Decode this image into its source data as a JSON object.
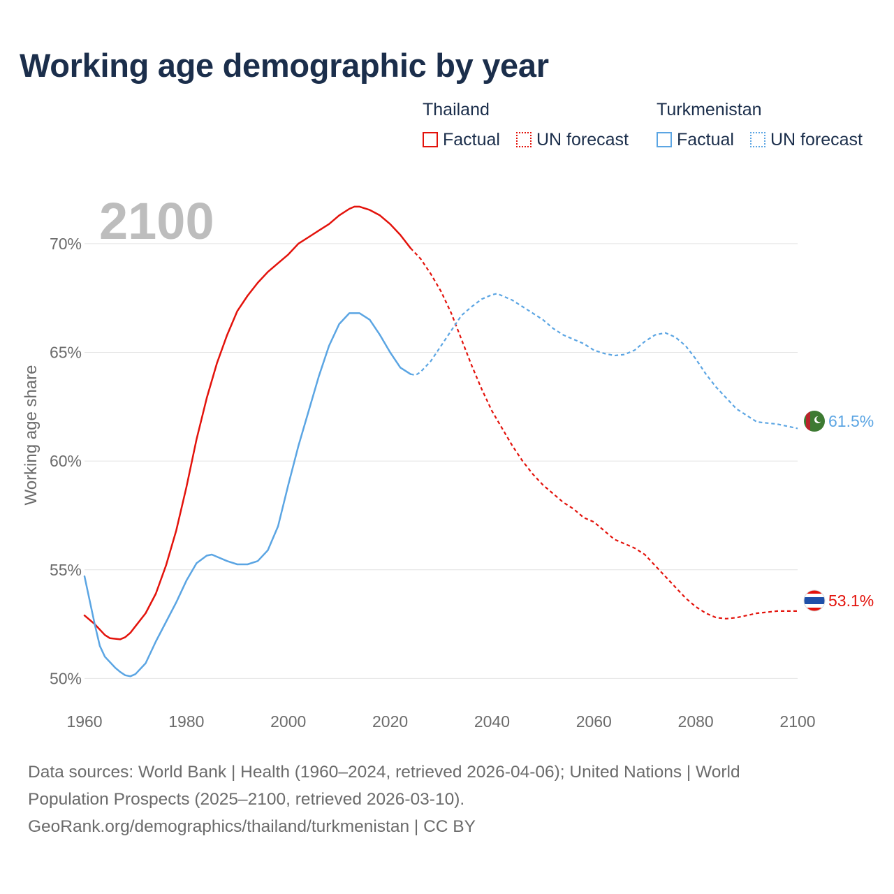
{
  "title": "Working age demographic by year",
  "legend": {
    "groups": [
      {
        "name": "Thailand",
        "color": "#e3120b",
        "items": [
          {
            "label": "Factual",
            "style": "solid"
          },
          {
            "label": "UN forecast",
            "style": "dotted"
          }
        ]
      },
      {
        "name": "Turkmenistan",
        "color": "#5ba5e3",
        "items": [
          {
            "label": "Factual",
            "style": "solid"
          },
          {
            "label": "UN forecast",
            "style": "dotted"
          }
        ]
      }
    ]
  },
  "year_label": "2100",
  "footer": {
    "line1": "Data sources: World Bank | Health (1960–2024, retrieved 2026-04-06); United Nations | World",
    "line2": "Population Prospects (2025–2100, retrieved 2026-03-10).",
    "line3": "GeoRank.org/demographics/thailand/turkmenistan | CC BY"
  },
  "chart_data": {
    "type": "line",
    "title": "Working age demographic by year",
    "xlabel": "",
    "ylabel": "Working age share",
    "xlim": [
      1960,
      2100
    ],
    "ylim": [
      49.5,
      72.5
    ],
    "x_ticks": [
      1960,
      1980,
      2000,
      2020,
      2040,
      2060,
      2080,
      2100
    ],
    "x_tick_labels": [
      "1960",
      "1980",
      "2000",
      "2020",
      "2040",
      "2060",
      "2080",
      "2100"
    ],
    "y_ticks": [
      50,
      55,
      60,
      65,
      70
    ],
    "y_tick_labels": [
      "50%",
      "55%",
      "60%",
      "65%",
      "70%"
    ],
    "grid": true,
    "factual_end_year": 2024,
    "series": [
      {
        "name": "Thailand",
        "color": "#e3120b",
        "end_label": "53.1%",
        "points": [
          [
            1960,
            52.9
          ],
          [
            1962,
            52.5
          ],
          [
            1964,
            52.0
          ],
          [
            1965,
            51.85
          ],
          [
            1967,
            51.8
          ],
          [
            1968,
            51.9
          ],
          [
            1969,
            52.1
          ],
          [
            1970,
            52.4
          ],
          [
            1972,
            53.0
          ],
          [
            1974,
            53.9
          ],
          [
            1976,
            55.2
          ],
          [
            1978,
            56.8
          ],
          [
            1980,
            58.8
          ],
          [
            1982,
            61.0
          ],
          [
            1984,
            62.9
          ],
          [
            1986,
            64.5
          ],
          [
            1988,
            65.8
          ],
          [
            1990,
            66.9
          ],
          [
            1992,
            67.6
          ],
          [
            1994,
            68.2
          ],
          [
            1996,
            68.7
          ],
          [
            1998,
            69.1
          ],
          [
            2000,
            69.5
          ],
          [
            2002,
            70.0
          ],
          [
            2004,
            70.3
          ],
          [
            2006,
            70.6
          ],
          [
            2008,
            70.9
          ],
          [
            2010,
            71.3
          ],
          [
            2012,
            71.6
          ],
          [
            2013,
            71.7
          ],
          [
            2014,
            71.7
          ],
          [
            2016,
            71.55
          ],
          [
            2018,
            71.3
          ],
          [
            2020,
            70.9
          ],
          [
            2022,
            70.4
          ],
          [
            2024,
            69.8
          ],
          [
            2026,
            69.3
          ],
          [
            2028,
            68.6
          ],
          [
            2030,
            67.8
          ],
          [
            2032,
            66.8
          ],
          [
            2034,
            65.6
          ],
          [
            2036,
            64.4
          ],
          [
            2038,
            63.3
          ],
          [
            2040,
            62.3
          ],
          [
            2042,
            61.5
          ],
          [
            2044,
            60.7
          ],
          [
            2046,
            60.0
          ],
          [
            2048,
            59.4
          ],
          [
            2050,
            58.9
          ],
          [
            2052,
            58.5
          ],
          [
            2054,
            58.1
          ],
          [
            2056,
            57.8
          ],
          [
            2058,
            57.4
          ],
          [
            2060,
            57.2
          ],
          [
            2062,
            56.8
          ],
          [
            2064,
            56.4
          ],
          [
            2066,
            56.2
          ],
          [
            2068,
            56.0
          ],
          [
            2070,
            55.7
          ],
          [
            2072,
            55.2
          ],
          [
            2074,
            54.7
          ],
          [
            2076,
            54.2
          ],
          [
            2078,
            53.7
          ],
          [
            2080,
            53.3
          ],
          [
            2082,
            53.0
          ],
          [
            2084,
            52.8
          ],
          [
            2086,
            52.75
          ],
          [
            2088,
            52.8
          ],
          [
            2090,
            52.9
          ],
          [
            2092,
            53.0
          ],
          [
            2094,
            53.05
          ],
          [
            2096,
            53.1
          ],
          [
            2098,
            53.1
          ],
          [
            2100,
            53.1
          ]
        ]
      },
      {
        "name": "Turkmenistan",
        "color": "#5ba5e3",
        "end_label": "61.5%",
        "points": [
          [
            1960,
            54.7
          ],
          [
            1961,
            53.6
          ],
          [
            1962,
            52.5
          ],
          [
            1963,
            51.5
          ],
          [
            1964,
            51.0
          ],
          [
            1966,
            50.5
          ],
          [
            1967,
            50.3
          ],
          [
            1968,
            50.15
          ],
          [
            1969,
            50.1
          ],
          [
            1970,
            50.2
          ],
          [
            1972,
            50.7
          ],
          [
            1974,
            51.7
          ],
          [
            1976,
            52.6
          ],
          [
            1978,
            53.5
          ],
          [
            1980,
            54.5
          ],
          [
            1982,
            55.3
          ],
          [
            1984,
            55.65
          ],
          [
            1985,
            55.7
          ],
          [
            1986,
            55.6
          ],
          [
            1988,
            55.4
          ],
          [
            1990,
            55.25
          ],
          [
            1992,
            55.25
          ],
          [
            1994,
            55.4
          ],
          [
            1996,
            55.9
          ],
          [
            1998,
            57.0
          ],
          [
            2000,
            58.9
          ],
          [
            2002,
            60.7
          ],
          [
            2004,
            62.3
          ],
          [
            2006,
            63.9
          ],
          [
            2008,
            65.3
          ],
          [
            2010,
            66.3
          ],
          [
            2012,
            66.8
          ],
          [
            2014,
            66.8
          ],
          [
            2016,
            66.5
          ],
          [
            2018,
            65.8
          ],
          [
            2020,
            65.0
          ],
          [
            2022,
            64.3
          ],
          [
            2024,
            64.0
          ],
          [
            2025,
            63.95
          ],
          [
            2026,
            64.1
          ],
          [
            2028,
            64.6
          ],
          [
            2030,
            65.3
          ],
          [
            2032,
            66.0
          ],
          [
            2034,
            66.7
          ],
          [
            2036,
            67.1
          ],
          [
            2038,
            67.45
          ],
          [
            2040,
            67.65
          ],
          [
            2041,
            67.7
          ],
          [
            2042,
            67.6
          ],
          [
            2044,
            67.4
          ],
          [
            2046,
            67.1
          ],
          [
            2048,
            66.8
          ],
          [
            2050,
            66.5
          ],
          [
            2052,
            66.1
          ],
          [
            2054,
            65.8
          ],
          [
            2056,
            65.6
          ],
          [
            2058,
            65.4
          ],
          [
            2060,
            65.1
          ],
          [
            2062,
            64.95
          ],
          [
            2064,
            64.85
          ],
          [
            2066,
            64.9
          ],
          [
            2068,
            65.1
          ],
          [
            2070,
            65.5
          ],
          [
            2072,
            65.8
          ],
          [
            2074,
            65.9
          ],
          [
            2076,
            65.7
          ],
          [
            2078,
            65.3
          ],
          [
            2080,
            64.7
          ],
          [
            2082,
            64.0
          ],
          [
            2084,
            63.4
          ],
          [
            2086,
            62.9
          ],
          [
            2088,
            62.4
          ],
          [
            2090,
            62.1
          ],
          [
            2092,
            61.8
          ],
          [
            2094,
            61.75
          ],
          [
            2096,
            61.7
          ],
          [
            2098,
            61.6
          ],
          [
            2100,
            61.5
          ]
        ]
      }
    ]
  }
}
